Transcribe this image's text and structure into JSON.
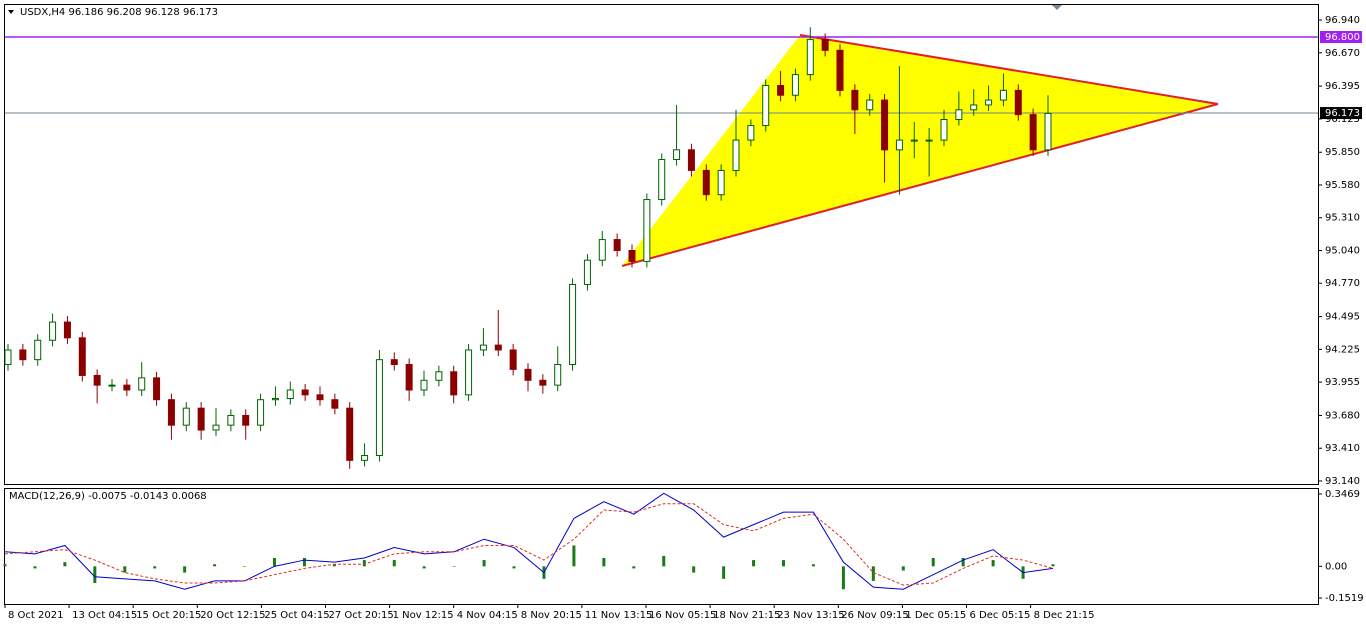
{
  "chart_data": [
    {
      "type": "candlestick",
      "title": "USDX,H4  96.186 96.208 96.128 96.173",
      "open": [
        94.1,
        94.22,
        94.14,
        94.3,
        94.45,
        94.32,
        94.01,
        93.93,
        93.93,
        93.89,
        93.99,
        93.81,
        93.6,
        93.74,
        93.56,
        93.6,
        93.68,
        93.6,
        93.81,
        93.82,
        93.89,
        93.85,
        93.81,
        93.74,
        93.31,
        93.35,
        94.14,
        94.1,
        93.89,
        93.97,
        94.04,
        93.85,
        94.22,
        94.26,
        94.22,
        94.06,
        93.97,
        93.93,
        94.1,
        94.76,
        94.96,
        95.13,
        95.04,
        94.95,
        95.46,
        95.79,
        95.87,
        95.7,
        95.5,
        95.7,
        95.95,
        96.07,
        96.4,
        96.32,
        96.49,
        96.78,
        96.69,
        96.36,
        96.2,
        96.28,
        95.87,
        95.95,
        95.95,
        95.95,
        96.12,
        96.2,
        96.24,
        96.28,
        96.36,
        96.16,
        95.87
      ],
      "high": [
        94.27,
        94.27,
        94.35,
        94.52,
        94.5,
        94.37,
        94.06,
        93.98,
        93.98,
        94.12,
        94.04,
        93.86,
        93.79,
        93.79,
        93.74,
        93.73,
        93.73,
        93.86,
        93.92,
        93.96,
        93.94,
        93.92,
        93.86,
        93.79,
        93.45,
        94.22,
        94.2,
        94.15,
        94.05,
        94.09,
        94.09,
        94.27,
        94.4,
        94.55,
        94.27,
        94.11,
        94.02,
        94.25,
        94.81,
        95.01,
        95.2,
        95.18,
        95.09,
        95.51,
        95.84,
        96.24,
        95.92,
        95.75,
        95.75,
        96.2,
        96.12,
        96.45,
        96.52,
        96.54,
        96.88,
        96.83,
        96.74,
        96.41,
        96.33,
        96.33,
        96.56,
        96.1,
        96.05,
        96.2,
        96.35,
        96.37,
        96.4,
        96.5,
        96.41,
        96.21,
        96.32
      ],
      "low": [
        94.05,
        94.09,
        94.09,
        94.25,
        94.27,
        93.96,
        93.78,
        93.88,
        93.84,
        93.84,
        93.76,
        93.48,
        93.55,
        93.48,
        93.51,
        93.55,
        93.48,
        93.55,
        93.76,
        93.77,
        93.8,
        93.76,
        93.69,
        93.24,
        93.26,
        93.3,
        94.05,
        93.8,
        93.84,
        93.92,
        93.78,
        93.8,
        94.17,
        94.17,
        94.01,
        93.88,
        93.86,
        93.88,
        94.05,
        94.71,
        94.91,
        94.99,
        94.9,
        94.9,
        95.41,
        95.74,
        95.65,
        95.45,
        95.45,
        95.65,
        95.9,
        96.02,
        96.27,
        96.27,
        96.44,
        96.64,
        96.31,
        96.0,
        96.15,
        95.6,
        95.5,
        95.8,
        95.65,
        95.9,
        96.07,
        96.15,
        96.19,
        96.23,
        96.11,
        95.82,
        95.82
      ],
      "close": [
        94.22,
        94.14,
        94.3,
        94.45,
        94.32,
        94.01,
        93.93,
        93.93,
        93.89,
        93.99,
        93.81,
        93.6,
        93.74,
        93.56,
        93.6,
        93.68,
        93.6,
        93.81,
        93.82,
        93.89,
        93.85,
        93.81,
        93.74,
        93.31,
        93.35,
        94.14,
        94.1,
        93.89,
        93.97,
        94.04,
        93.85,
        94.22,
        94.26,
        94.22,
        94.06,
        93.97,
        93.93,
        94.1,
        94.76,
        94.96,
        95.13,
        95.04,
        94.95,
        95.46,
        95.79,
        95.87,
        95.7,
        95.5,
        95.7,
        95.95,
        96.07,
        96.4,
        96.32,
        96.49,
        96.78,
        96.69,
        96.36,
        96.2,
        96.28,
        95.87,
        95.95,
        95.95,
        95.95,
        96.12,
        96.2,
        96.24,
        96.28,
        96.36,
        96.16,
        95.87,
        96.17
      ],
      "up_color": "#006400",
      "down_color": "#8b0000",
      "ylim": [
        93.115,
        97.072
      ],
      "yticks": [
        {
          "value": 96.94,
          "label": "96.940"
        },
        {
          "value": 96.67,
          "label": "96.670"
        },
        96.395,
        96.125,
        {
          "value": 95.85,
          "label": "95.850"
        },
        {
          "value": 95.58,
          "label": "95.580"
        },
        {
          "value": 95.31,
          "label": "95.310"
        },
        {
          "value": 95.04,
          "label": "95.040"
        },
        {
          "value": 94.77,
          "label": "94.770"
        },
        94.495,
        94.225,
        93.955,
        {
          "value": 93.68,
          "label": "93.680"
        },
        {
          "value": 93.41,
          "label": "93.410"
        },
        {
          "value": 93.14,
          "label": "93.140"
        }
      ],
      "resistance": {
        "value": 96.8,
        "label": "96.800",
        "color": "#a020f0"
      },
      "last_price": 96.173,
      "time_labels": [
        "8 Oct 2021",
        "13 Oct 04:15",
        "15 Oct 20:15",
        "20 Oct 12:15",
        "25 Oct 04:15",
        "27 Oct 20:15",
        "1 Nov 12:15",
        "4 Nov 04:15",
        "8 Nov 20:15",
        "11 Nov 13:15",
        "16 Nov 05:15",
        "18 Nov 21:15",
        "23 Nov 13:15",
        "26 Nov 09:15",
        "1 Dec 05:15",
        "6 Dec 05:15",
        "8 Dec 21:15"
      ]
    },
    {
      "type": "line",
      "title": "MACD(12,26,9) -0.0075 -0.0143 0.0068",
      "series": [
        {
          "color": "#0000cd",
          "style": "solid",
          "values": [
            0.07,
            0.06,
            0.1,
            -0.05,
            -0.06,
            -0.07,
            -0.11,
            -0.07,
            -0.07,
            0.0,
            0.03,
            0.02,
            0.04,
            0.09,
            0.06,
            0.07,
            0.13,
            0.09,
            -0.03,
            0.23,
            0.31,
            0.25,
            0.35,
            0.27,
            0.14,
            0.2,
            0.26,
            0.26,
            0.02,
            -0.1,
            -0.11,
            -0.04,
            0.03,
            0.08,
            -0.03,
            -0.01
          ]
        },
        {
          "color": "#e03020",
          "style": "dashed",
          "values": [
            0.06,
            0.07,
            0.08,
            0.03,
            -0.03,
            -0.06,
            -0.08,
            -0.08,
            -0.07,
            -0.04,
            -0.01,
            0.01,
            0.01,
            0.06,
            0.07,
            0.07,
            0.1,
            0.1,
            0.03,
            0.13,
            0.27,
            0.26,
            0.3,
            0.3,
            0.2,
            0.17,
            0.23,
            0.25,
            0.13,
            -0.03,
            -0.09,
            -0.08,
            -0.01,
            0.05,
            0.03,
            -0.01
          ]
        }
      ],
      "histogram": {
        "color": "#1a7a1a",
        "values": [
          0.01,
          -0.01,
          0.02,
          -0.08,
          -0.03,
          -0.01,
          -0.03,
          0.01,
          0.0,
          0.04,
          0.04,
          0.01,
          0.03,
          0.03,
          -0.01,
          0.0,
          0.03,
          -0.01,
          -0.06,
          0.1,
          0.04,
          -0.01,
          0.05,
          -0.03,
          -0.06,
          0.03,
          0.03,
          0.01,
          -0.11,
          -0.07,
          -0.02,
          0.04,
          0.04,
          0.03,
          -0.06,
          0.01
        ]
      },
      "ylim": [
        -0.1807,
        0.3757
      ],
      "yticks": [
        0.3469,
        {
          "value": 0,
          "label": "0.00"
        },
        -0.1519
      ]
    }
  ]
}
